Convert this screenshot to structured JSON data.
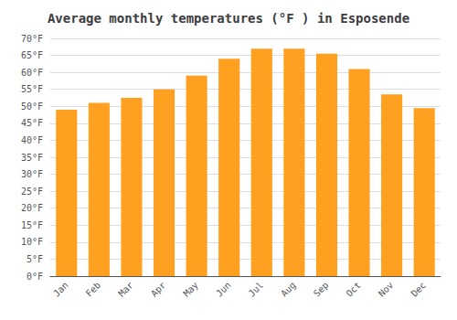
{
  "chart_data": {
    "type": "bar",
    "title": "Average monthly temperatures (°F ) in Esposende",
    "categories": [
      "Jan",
      "Feb",
      "Mar",
      "Apr",
      "May",
      "Jun",
      "Jul",
      "Aug",
      "Sep",
      "Oct",
      "Nov",
      "Dec"
    ],
    "values": [
      49,
      51,
      52.5,
      55,
      59,
      64,
      67,
      67,
      65.5,
      61,
      53.5,
      49.5
    ],
    "color": "#FFA020",
    "ylim": [
      0,
      70
    ],
    "yticks": [
      {
        "value": 0,
        "label": "0°F"
      },
      {
        "value": 5,
        "label": "5°F"
      },
      {
        "value": 10,
        "label": "10°F"
      },
      {
        "value": 15,
        "label": "15°F"
      },
      {
        "value": 20,
        "label": "20°F"
      },
      {
        "value": 25,
        "label": "25°F"
      },
      {
        "value": 30,
        "label": "30°F"
      },
      {
        "value": 35,
        "label": "35°F"
      },
      {
        "value": 40,
        "label": "40°F"
      },
      {
        "value": 45,
        "label": "45°F"
      },
      {
        "value": 50,
        "label": "50°F"
      },
      {
        "value": 55,
        "label": "55°F"
      },
      {
        "value": 60,
        "label": "60°F"
      },
      {
        "value": 65,
        "label": "65°F"
      },
      {
        "value": 70,
        "label": "70°F"
      }
    ],
    "grid": true
  }
}
